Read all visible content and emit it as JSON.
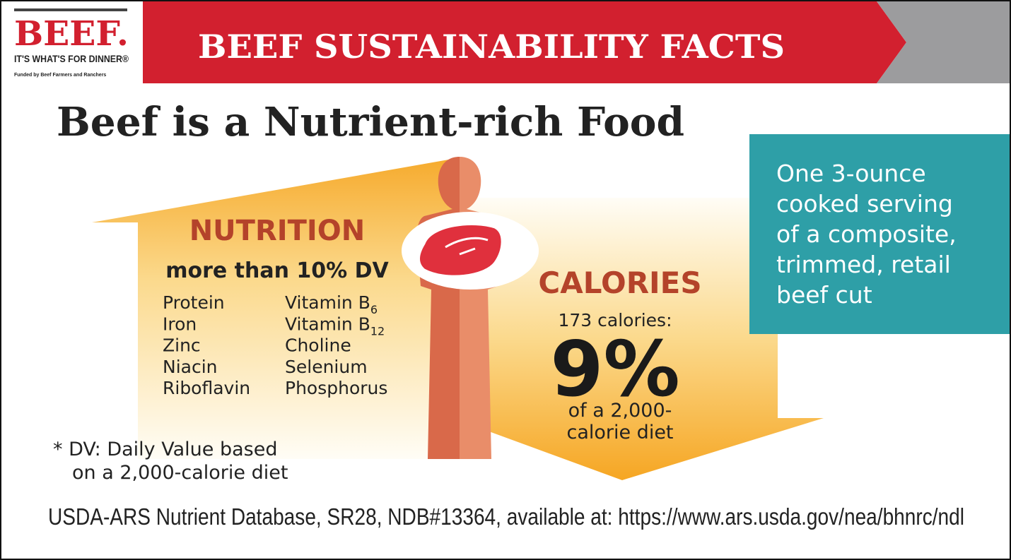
{
  "logo": {
    "brand": "BEEF.",
    "tagline": "IT'S WHAT'S FOR DINNER®",
    "funding": "Funded by Beef Farmers and Ranchers"
  },
  "banner": {
    "title": "BEEF SUSTAINABILITY FACTS"
  },
  "headline": "Beef is a Nutrient-rich Food",
  "serving_box": {
    "lines": [
      "One 3-ounce",
      "cooked serving",
      "of a composite,",
      "trimmed, retail",
      "beef cut"
    ]
  },
  "nutrition": {
    "title": "NUTRITION",
    "subtitle": "more than 10% DV",
    "left": [
      "Protein",
      "Iron",
      "Zinc",
      "Niacin",
      "Riboflavin"
    ],
    "right": [
      {
        "text": "Vitamin B",
        "sub": "6"
      },
      {
        "text": "Vitamin B",
        "sub": "12"
      },
      {
        "text": "Choline"
      },
      {
        "text": "Selenium"
      },
      {
        "text": "Phosphorus"
      }
    ]
  },
  "calories": {
    "title": "CALORIES",
    "amount": "173 calories:",
    "percent": "9%",
    "lines": [
      "of a 2,000-",
      "calorie diet"
    ]
  },
  "footnote": {
    "lines": [
      "* DV: Daily Value based",
      "on a 2,000-calorie diet"
    ]
  },
  "source": "USDA-ARS Nutrient Database, SR28, NDB#13364, available at: https://www.ars.usda.gov/nea/bhnrc/ndl"
}
